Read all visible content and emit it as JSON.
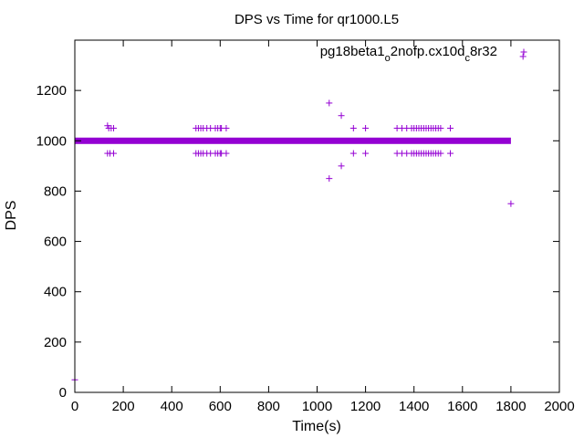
{
  "chart_data": {
    "type": "scatter",
    "title": "DPS vs Time for qr1000.L5",
    "xlabel": "Time(s)",
    "ylabel": "DPS",
    "xlim": [
      0,
      2000
    ],
    "ylim": [
      0,
      1400
    ],
    "xticks": [
      0,
      200,
      400,
      600,
      800,
      1000,
      1200,
      1400,
      1600,
      1800,
      2000
    ],
    "yticks": [
      0,
      200,
      400,
      600,
      800,
      1000,
      1200
    ],
    "grid": false,
    "legend_position": "top-right",
    "marker": "+",
    "color": "#9400d3",
    "series": [
      {
        "name_parts": [
          "pg18beta1",
          "o",
          "2nofp.cx10d",
          "c",
          "8r32"
        ],
        "dense_band": {
          "y": 1000,
          "x_start": 0,
          "x_end": 1800
        },
        "points": [
          [
            0,
            50
          ],
          [
            135,
            1060
          ],
          [
            140,
            1050
          ],
          [
            150,
            1050
          ],
          [
            160,
            1050
          ],
          [
            135,
            950
          ],
          [
            145,
            950
          ],
          [
            160,
            950
          ],
          [
            500,
            1050
          ],
          [
            510,
            1050
          ],
          [
            520,
            1050
          ],
          [
            530,
            1050
          ],
          [
            545,
            1050
          ],
          [
            560,
            1050
          ],
          [
            580,
            1050
          ],
          [
            590,
            1050
          ],
          [
            600,
            1050
          ],
          [
            605,
            1050
          ],
          [
            625,
            1050
          ],
          [
            500,
            950
          ],
          [
            510,
            950
          ],
          [
            520,
            950
          ],
          [
            530,
            950
          ],
          [
            545,
            950
          ],
          [
            560,
            950
          ],
          [
            580,
            950
          ],
          [
            590,
            950
          ],
          [
            600,
            950
          ],
          [
            605,
            950
          ],
          [
            625,
            950
          ],
          [
            1050,
            1150
          ],
          [
            1100,
            1100
          ],
          [
            1150,
            1050
          ],
          [
            1200,
            1050
          ],
          [
            1150,
            950
          ],
          [
            1200,
            950
          ],
          [
            1100,
            900
          ],
          [
            1050,
            850
          ],
          [
            1330,
            1050
          ],
          [
            1350,
            1050
          ],
          [
            1370,
            1050
          ],
          [
            1390,
            1050
          ],
          [
            1400,
            1050
          ],
          [
            1410,
            1050
          ],
          [
            1420,
            1050
          ],
          [
            1430,
            1050
          ],
          [
            1440,
            1050
          ],
          [
            1450,
            1050
          ],
          [
            1460,
            1050
          ],
          [
            1470,
            1050
          ],
          [
            1480,
            1050
          ],
          [
            1490,
            1050
          ],
          [
            1500,
            1050
          ],
          [
            1510,
            1050
          ],
          [
            1550,
            1050
          ],
          [
            1330,
            950
          ],
          [
            1350,
            950
          ],
          [
            1370,
            950
          ],
          [
            1390,
            950
          ],
          [
            1400,
            950
          ],
          [
            1410,
            950
          ],
          [
            1420,
            950
          ],
          [
            1430,
            950
          ],
          [
            1440,
            950
          ],
          [
            1450,
            950
          ],
          [
            1460,
            950
          ],
          [
            1470,
            950
          ],
          [
            1480,
            950
          ],
          [
            1490,
            950
          ],
          [
            1500,
            950
          ],
          [
            1510,
            950
          ],
          [
            1550,
            950
          ],
          [
            1800,
            750
          ],
          [
            1850,
            1335
          ]
        ]
      }
    ]
  }
}
